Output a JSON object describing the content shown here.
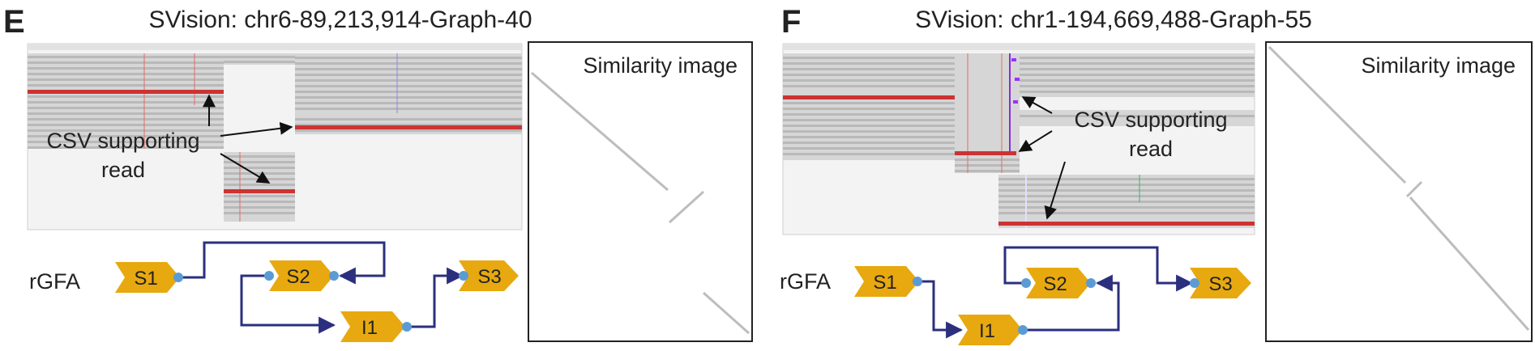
{
  "panels": [
    {
      "letter": "E",
      "title": "SVision: chr6-89,213,914-Graph-40",
      "annotation": [
        "CSV supporting",
        "read"
      ],
      "similarity_label": "Similarity image",
      "rgfa_label": "rGFA",
      "nodes": [
        "S1",
        "S2",
        "I1",
        "S3"
      ]
    },
    {
      "letter": "F",
      "title": "SVision: chr1-194,669,488-Graph-55",
      "annotation": [
        "CSV supporting",
        "read"
      ],
      "similarity_label": "Similarity image",
      "rgfa_label": "rGFA",
      "nodes": [
        "S1",
        "S2",
        "I1",
        "S3"
      ]
    }
  ],
  "colors": {
    "node_fill": "#e7a90f",
    "edge": "#2b2f7e",
    "port": "#5b9bd5",
    "read_highlight": "#cc3333",
    "read_gray": "#b9b9b9",
    "diagonal": "#bdbdbd"
  }
}
